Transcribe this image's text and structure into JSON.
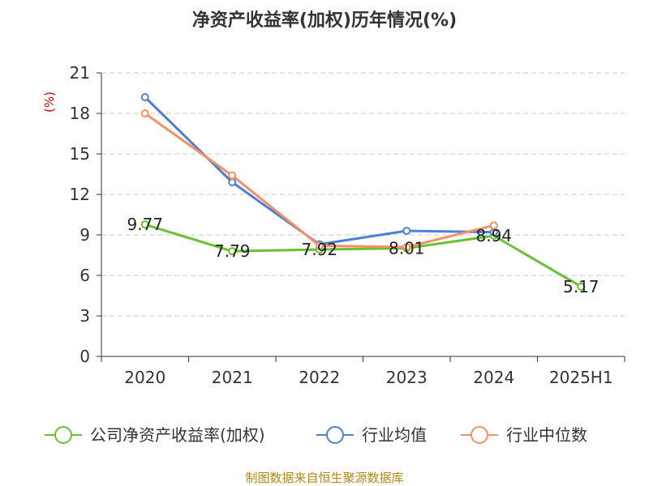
{
  "chart_data": {
    "type": "line",
    "title": "净资产收益率(加权)历年情况(%)",
    "unit_label": "(%)",
    "categories": [
      "2020",
      "2021",
      "2022",
      "2023",
      "2024",
      "2025H1"
    ],
    "ylim": [
      0,
      21
    ],
    "yticks": [
      "0",
      "3",
      "6",
      "9",
      "12",
      "15",
      "18",
      "21"
    ],
    "grid": true,
    "legend_position": "bottom",
    "series": [
      {
        "name": "公司净资产收益率(加权)",
        "color": "#66c22e",
        "values": [
          9.77,
          7.79,
          7.92,
          8.01,
          8.94,
          5.17
        ],
        "labels": [
          "9.77",
          "7.79",
          "7.92",
          "8.01",
          "8.94",
          "5.17"
        ]
      },
      {
        "name": "行业均值",
        "color": "#4e7fd8",
        "values": [
          19.2,
          12.9,
          8.3,
          9.3,
          9.2,
          null
        ]
      },
      {
        "name": "行业中位数",
        "color": "#f49062",
        "values": [
          18.0,
          13.4,
          8.2,
          8.1,
          9.7,
          null
        ]
      }
    ],
    "source": "制图数据来自恒生聚源数据库"
  }
}
